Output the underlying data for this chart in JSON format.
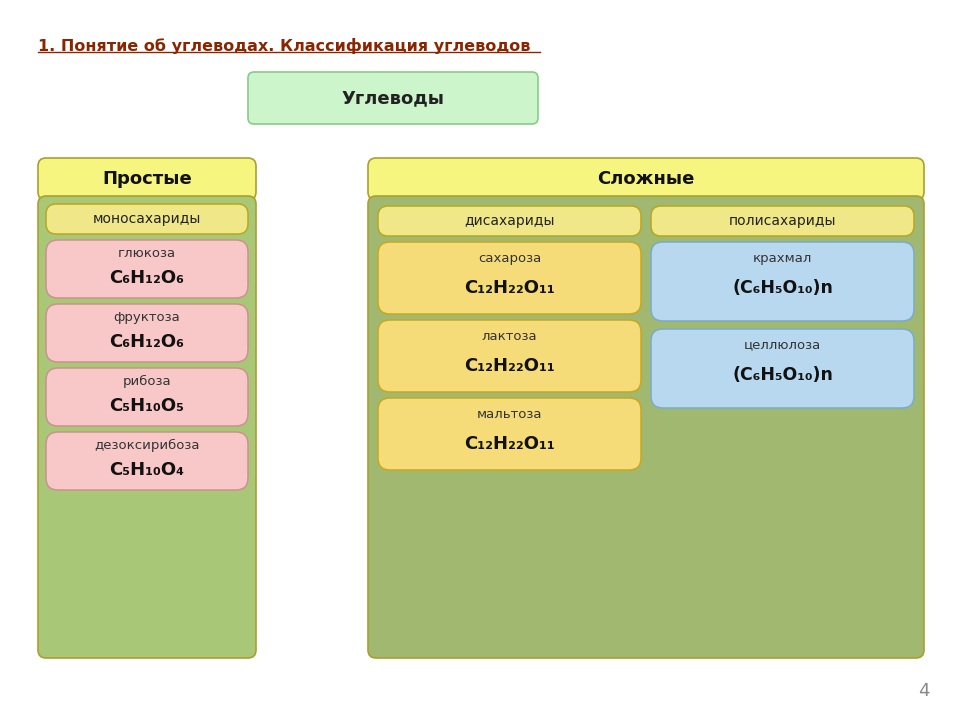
{
  "title": "1. Понятие об углеводах. Классификация углеводов",
  "title_color": "#8B2500",
  "bg_color": "#ffffff",
  "uglevody_box_color": "#ccf5cc",
  "uglevody_label": "Углеводы",
  "prostye_top_color": "#f5f580",
  "prostye_inner_color": "#a8c878",
  "prostye_label": "Простые",
  "slozhnye_top_color": "#f5f580",
  "slozhnye_inner_color": "#a0b870",
  "slozhnye_label": "Сложные",
  "mono_header_color": "#f0e888",
  "mono_header_label": "моносахариды",
  "mono_items": [
    {
      "name": "глюкоза",
      "formula": "C₆H₁₂O₆",
      "color": "#f8c8c8"
    },
    {
      "name": "фруктоза",
      "formula": "C₆H₁₂O₆",
      "color": "#f8c8c8"
    },
    {
      "name": "рибоза",
      "formula": "C₅H₁₀O₅",
      "color": "#f8c8c8"
    },
    {
      "name": "дезоксирибоза",
      "formula": "C₅H₁₀O₄",
      "color": "#f8c8c8"
    }
  ],
  "di_header_color": "#f0e888",
  "di_header_label": "дисахариды",
  "di_items": [
    {
      "name": "сахароза",
      "formula": "C₁₂H₂₂O₁₁",
      "color": "#f5dc78"
    },
    {
      "name": "лактоза",
      "formula": "C₁₂H₂₂O₁₁",
      "color": "#f5dc78"
    },
    {
      "name": "мальтоза",
      "formula": "C₁₂H₂₂O₁₁",
      "color": "#f5dc78"
    }
  ],
  "poly_header_color": "#f0e888",
  "poly_header_label": "полисахариды",
  "poly_items": [
    {
      "name": "крахмал",
      "formula": "(C₆H₅O₁₀)n",
      "color": "#b8d8f0"
    },
    {
      "name": "целлюлоза",
      "formula": "(C₆H₅O₁₀)n",
      "color": "#b8d8f0"
    }
  ],
  "page_number": "4"
}
